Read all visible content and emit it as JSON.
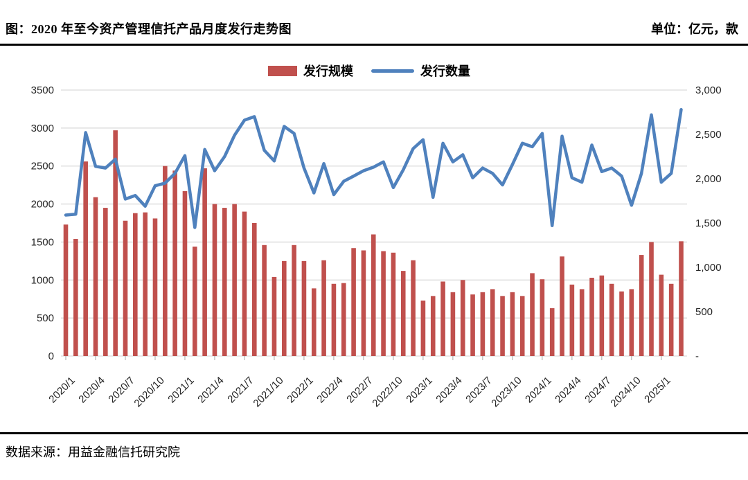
{
  "header": {
    "title": "图：2020 年至今资产管理信托产品月度发行走势图",
    "unit_label": "单位：亿元，款"
  },
  "legend": [
    {
      "label": "发行规模",
      "type": "bar",
      "color": "#C0504D"
    },
    {
      "label": "发行数量",
      "type": "line",
      "color": "#4F81BD"
    }
  ],
  "footer": {
    "source": "数据来源：用益金融信托研究院"
  },
  "chart_data": {
    "type": "bar",
    "subtype": "dual-axis bar + line",
    "title": "2020年至今资产管理信托产品月度发行走势图",
    "grid": "horizontal",
    "legend_position": "top-center",
    "categories": [
      "2020/1",
      "2020/2",
      "2020/3",
      "2020/4",
      "2020/5",
      "2020/6",
      "2020/7",
      "2020/8",
      "2020/9",
      "2020/10",
      "2020/11",
      "2020/12",
      "2021/1",
      "2021/2",
      "2021/3",
      "2021/4",
      "2021/5",
      "2021/6",
      "2021/7",
      "2021/8",
      "2021/9",
      "2021/10",
      "2021/11",
      "2021/12",
      "2022/1",
      "2022/2",
      "2022/3",
      "2022/4",
      "2022/5",
      "2022/6",
      "2022/7",
      "2022/8",
      "2022/9",
      "2022/10",
      "2022/11",
      "2022/12",
      "2023/1",
      "2023/2",
      "2023/3",
      "2023/4",
      "2023/5",
      "2023/6",
      "2023/7",
      "2023/8",
      "2023/9",
      "2023/10",
      "2023/11",
      "2023/12",
      "2024/1",
      "2024/2",
      "2024/3",
      "2024/4",
      "2024/5",
      "2024/6",
      "2024/7",
      "2024/8",
      "2024/9",
      "2024/10",
      "2024/11",
      "2024/12",
      "2025/1",
      "2025/2",
      "2025/3"
    ],
    "x_tick_label_step": 3,
    "series": [
      {
        "name": "发行规模",
        "type": "bar",
        "axis": "left",
        "color": "#C0504D",
        "unit": "亿元",
        "values": [
          1730,
          1540,
          2560,
          2090,
          1950,
          2970,
          1780,
          1880,
          1890,
          1810,
          2500,
          2440,
          2170,
          1440,
          2470,
          2000,
          1950,
          2000,
          1900,
          1750,
          1460,
          1040,
          1250,
          1460,
          1250,
          890,
          1260,
          950,
          960,
          1420,
          1390,
          1600,
          1380,
          1360,
          1120,
          1260,
          730,
          790,
          980,
          840,
          1000,
          810,
          840,
          880,
          790,
          840,
          790,
          1090,
          1010,
          630,
          1310,
          940,
          880,
          1030,
          1060,
          950,
          850,
          880,
          1330,
          1500,
          1070,
          950,
          1510
        ]
      },
      {
        "name": "发行数量",
        "type": "line",
        "axis": "right",
        "color": "#4F81BD",
        "unit": "款",
        "values": [
          1590,
          1600,
          2520,
          2140,
          2120,
          2220,
          1770,
          1810,
          1690,
          1920,
          1950,
          2060,
          2260,
          1450,
          2330,
          2090,
          2250,
          2490,
          2660,
          2700,
          2320,
          2200,
          2590,
          2510,
          2120,
          1840,
          2170,
          1820,
          1970,
          2030,
          2090,
          2130,
          2190,
          1900,
          2100,
          2340,
          2440,
          1790,
          2400,
          2190,
          2270,
          2010,
          2120,
          2060,
          1930,
          2160,
          2400,
          2360,
          2510,
          1470,
          2480,
          2010,
          1960,
          2380,
          2080,
          2120,
          2030,
          1700,
          2060,
          2720,
          1960,
          2060,
          2780
        ]
      }
    ],
    "left_axis": {
      "min": 0,
      "max": 3500,
      "step": 500,
      "tick_labels": [
        "0",
        "500",
        "1000",
        "1500",
        "2000",
        "2500",
        "3000",
        "3500"
      ]
    },
    "right_axis": {
      "min": 0,
      "max": 3000,
      "step": 500,
      "tick_labels": [
        "-",
        "500",
        "1,000",
        "1,500",
        "2,000",
        "2,500",
        "3,000"
      ]
    },
    "colors": {
      "gridline": "#D9D9D9",
      "tick": "#A6A6A6",
      "axis_text": "#262626"
    }
  }
}
